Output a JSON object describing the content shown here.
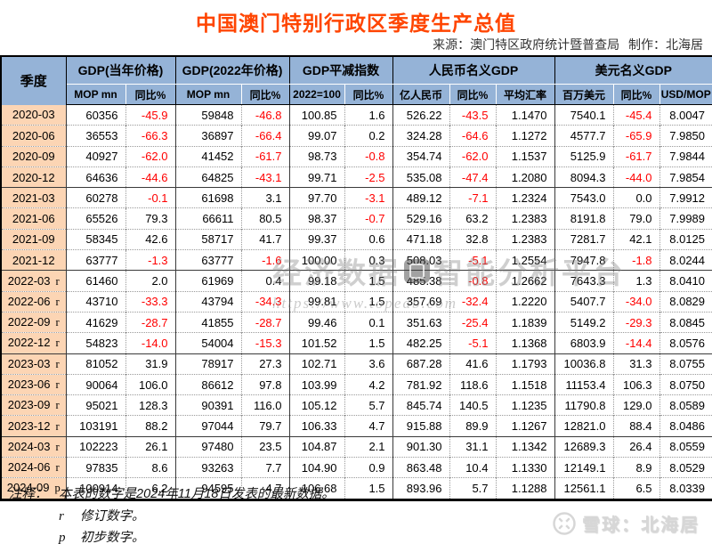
{
  "title": "中国澳门特别行政区季度生产总值",
  "source": {
    "source_text": "来源：澳门特区政府统计暨普查局",
    "maker_text": "制作：北海居"
  },
  "colors": {
    "title_accent": "#ff4500",
    "header_bg": "#95b3d7",
    "quarter_col_bg": "#fcd5b4",
    "negative_value": "#ff0000"
  },
  "table": {
    "quarter_header": "季度",
    "col_groups": [
      {
        "label": "GDP(当年价格)",
        "colspan": 2
      },
      {
        "label": "GDP(2022年价格)",
        "colspan": 2
      },
      {
        "label": "GDP平减指数",
        "colspan": 2
      },
      {
        "label": "人民币名义GDP",
        "colspan": 3
      },
      {
        "label": "美元名义GDP",
        "colspan": 3
      }
    ],
    "sub_headers": [
      "MOP mn",
      "同比%",
      "MOP mn",
      "同比%",
      "2022=100",
      "同比%",
      "亿人民币",
      "同比%",
      "平均汇率",
      "百万美元",
      "同比%",
      "USD/MOP"
    ],
    "rows": [
      {
        "quarter": "2020-03",
        "suffix": "",
        "values": [
          "60356",
          "-45.9",
          "59848",
          "-46.8",
          "100.85",
          "1.6",
          "526.22",
          "-43.5",
          "1.1470",
          "7540.1",
          "-45.4",
          "8.0047"
        ]
      },
      {
        "quarter": "2020-06",
        "suffix": "",
        "values": [
          "36553",
          "-66.3",
          "36897",
          "-66.4",
          "99.07",
          "0.2",
          "324.28",
          "-64.6",
          "1.1272",
          "4577.7",
          "-65.9",
          "7.9850"
        ]
      },
      {
        "quarter": "2020-09",
        "suffix": "",
        "values": [
          "40927",
          "-62.0",
          "41452",
          "-61.7",
          "98.73",
          "-0.8",
          "354.74",
          "-62.0",
          "1.1537",
          "5125.9",
          "-61.7",
          "7.9844"
        ]
      },
      {
        "quarter": "2020-12",
        "suffix": "",
        "values": [
          "64636",
          "-44.6",
          "64825",
          "-43.1",
          "99.71",
          "-2.5",
          "535.08",
          "-47.4",
          "1.2080",
          "8094.3",
          "-44.0",
          "7.9854"
        ]
      },
      {
        "quarter": "2021-03",
        "suffix": "",
        "values": [
          "60278",
          "-0.1",
          "61698",
          "3.1",
          "97.70",
          "-3.1",
          "489.12",
          "-7.1",
          "1.2324",
          "7543.0",
          "0.0",
          "7.9912"
        ]
      },
      {
        "quarter": "2021-06",
        "suffix": "",
        "values": [
          "65526",
          "79.3",
          "66611",
          "80.5",
          "98.37",
          "-0.7",
          "529.16",
          "63.2",
          "1.2383",
          "8191.8",
          "79.0",
          "7.9989"
        ]
      },
      {
        "quarter": "2021-09",
        "suffix": "",
        "values": [
          "58345",
          "42.6",
          "58717",
          "41.7",
          "99.37",
          "0.6",
          "471.18",
          "32.8",
          "1.2383",
          "7281.7",
          "42.1",
          "8.0125"
        ]
      },
      {
        "quarter": "2021-12",
        "suffix": "",
        "values": [
          "63777",
          "-1.3",
          "63777",
          "-1.6",
          "100.00",
          "0.3",
          "508.03",
          "-5.1",
          "1.2554",
          "7947.8",
          "-1.8",
          "8.0244"
        ]
      },
      {
        "quarter": "2022-03",
        "suffix": "r",
        "values": [
          "61460",
          "2.0",
          "61969",
          "0.4",
          "99.18",
          "1.5",
          "485.38",
          "-0.8",
          "1.2662",
          "7643.3",
          "1.3",
          "8.0410"
        ]
      },
      {
        "quarter": "2022-06",
        "suffix": "r",
        "values": [
          "43710",
          "-33.3",
          "43794",
          "-34.3",
          "99.81",
          "1.5",
          "357.69",
          "-32.4",
          "1.2220",
          "5407.7",
          "-34.0",
          "8.0829"
        ]
      },
      {
        "quarter": "2022-09",
        "suffix": "r",
        "values": [
          "41629",
          "-28.7",
          "41855",
          "-28.7",
          "99.46",
          "0.1",
          "351.63",
          "-25.4",
          "1.1839",
          "5149.2",
          "-29.3",
          "8.0845"
        ]
      },
      {
        "quarter": "2022-12",
        "suffix": "r",
        "values": [
          "54823",
          "-14.0",
          "54004",
          "-15.3",
          "101.52",
          "1.5",
          "482.25",
          "-5.1",
          "1.1368",
          "6803.9",
          "-14.4",
          "8.0576"
        ]
      },
      {
        "quarter": "2023-03",
        "suffix": "r",
        "values": [
          "81052",
          "31.9",
          "78917",
          "27.3",
          "102.71",
          "3.6",
          "687.28",
          "41.6",
          "1.1793",
          "10036.8",
          "31.3",
          "8.0755"
        ]
      },
      {
        "quarter": "2023-06",
        "suffix": "r",
        "values": [
          "90064",
          "106.0",
          "86612",
          "97.8",
          "103.99",
          "4.2",
          "781.92",
          "118.6",
          "1.1518",
          "11153.4",
          "106.3",
          "8.0750"
        ]
      },
      {
        "quarter": "2023-09",
        "suffix": "r",
        "values": [
          "95021",
          "128.3",
          "90391",
          "116.0",
          "105.12",
          "5.7",
          "845.74",
          "140.5",
          "1.1235",
          "11790.8",
          "129.0",
          "8.0589"
        ]
      },
      {
        "quarter": "2023-12",
        "suffix": "r",
        "values": [
          "103191",
          "88.2",
          "97044",
          "79.7",
          "106.33",
          "4.7",
          "915.88",
          "89.9",
          "1.1267",
          "12821.0",
          "88.4",
          "8.0486"
        ]
      },
      {
        "quarter": "2024-03",
        "suffix": "r",
        "values": [
          "102223",
          "26.1",
          "97480",
          "23.5",
          "104.87",
          "2.1",
          "901.30",
          "31.1",
          "1.1342",
          "12689.3",
          "26.4",
          "8.0559"
        ]
      },
      {
        "quarter": "2024-06",
        "suffix": "r",
        "values": [
          "97835",
          "8.6",
          "93263",
          "7.7",
          "104.90",
          "0.9",
          "863.48",
          "10.4",
          "1.1330",
          "12149.1",
          "8.9",
          "8.0529"
        ]
      },
      {
        "quarter": "2024-09",
        "suffix": "p",
        "values": [
          "100914",
          "6.2",
          "94595",
          "4.7",
          "106.68",
          "1.5",
          "893.96",
          "5.7",
          "1.1288",
          "12561.1",
          "6.5",
          "8.0339"
        ]
      }
    ]
  },
  "notes": {
    "label": "注释：",
    "main": "本表的数字是2024年11月18日发表的最新数据。",
    "r_symbol": "r",
    "r_text": "修订数字。",
    "p_symbol": "p",
    "p_text": "初步数字。"
  },
  "watermark_center": {
    "text_left": "经济数据",
    "text_right": "智能分析平台",
    "url": "https://www.topedb.com"
  },
  "watermark_corner": {
    "text": "雪球：北海居"
  }
}
